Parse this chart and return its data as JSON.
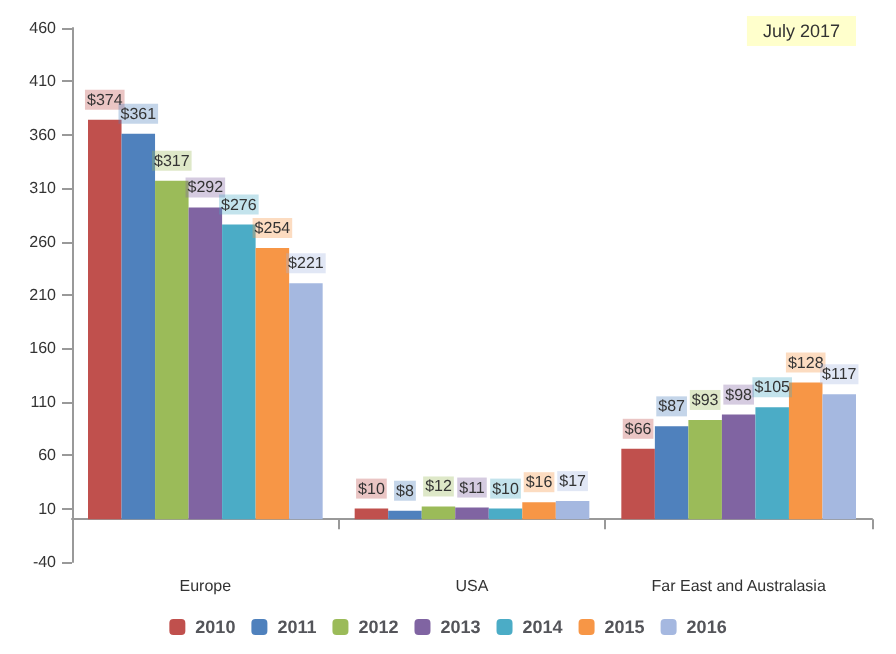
{
  "chart_data": {
    "type": "bar",
    "categories": [
      "Europe",
      "USA",
      "Far East and Australasia"
    ],
    "series": [
      {
        "name": "2010",
        "color": "#c0504d",
        "values": [
          374,
          10,
          66
        ],
        "value_labels": [
          "$374",
          "$10",
          "$66"
        ]
      },
      {
        "name": "2011",
        "color": "#4f81bd",
        "values": [
          361,
          8,
          87
        ],
        "value_labels": [
          "$361",
          "$8",
          "$87"
        ]
      },
      {
        "name": "2012",
        "color": "#9bbb59",
        "values": [
          317,
          12,
          93
        ],
        "value_labels": [
          "$317",
          "$12",
          "$93"
        ]
      },
      {
        "name": "2013",
        "color": "#8064a2",
        "values": [
          292,
          11,
          98
        ],
        "value_labels": [
          "$292",
          "$11",
          "$98"
        ]
      },
      {
        "name": "2014",
        "color": "#4bacc6",
        "values": [
          276,
          10,
          105
        ],
        "value_labels": [
          "$276",
          "$10",
          "$105"
        ]
      },
      {
        "name": "2015",
        "color": "#f79646",
        "values": [
          254,
          16,
          128
        ],
        "value_labels": [
          "$254",
          "$16",
          "$128"
        ]
      },
      {
        "name": "2016",
        "color": "#a5b8e0",
        "values": [
          221,
          17,
          117
        ],
        "value_labels": [
          "$221",
          "$17",
          "$117"
        ]
      }
    ],
    "annotations": [
      "July 2017"
    ],
    "ylim": [
      -40,
      460
    ],
    "yticks": [
      -40,
      10,
      60,
      110,
      160,
      210,
      260,
      310,
      360,
      410,
      460
    ],
    "grid": false,
    "legend": "bottom"
  }
}
